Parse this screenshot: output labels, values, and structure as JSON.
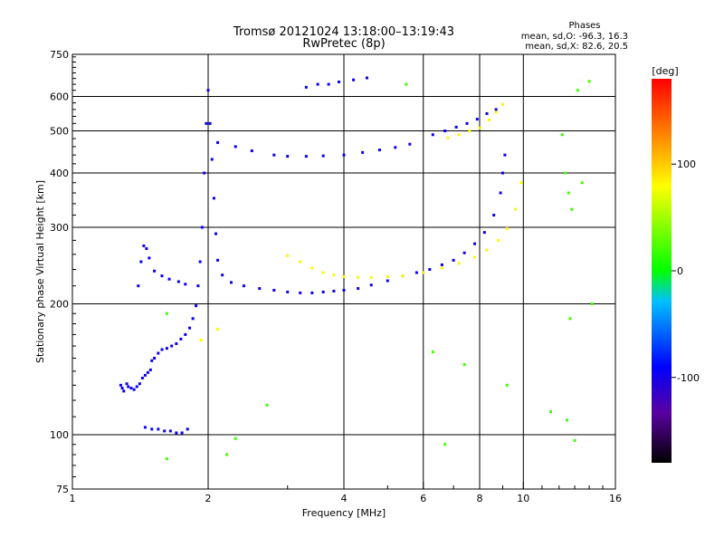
{
  "chart_data": {
    "type": "scatter",
    "title": "Tromsø 20121024 13:18:00–13:19:43",
    "subtitle": "RwPretec (8p)",
    "xlabel": "Frequency [MHz]",
    "ylabel": "Stationary phase Virtual Height [km]",
    "x_scale": "log",
    "y_scale": "log",
    "xlim": [
      1,
      16
    ],
    "ylim": [
      75,
      750
    ],
    "x_ticks": [
      1,
      2,
      4,
      6,
      8,
      10,
      16
    ],
    "x_tick_labels": [
      "1",
      "2",
      "4",
      "6",
      "8",
      "10",
      "16"
    ],
    "y_ticks": [
      75,
      100,
      200,
      300,
      400,
      500,
      600,
      750
    ],
    "y_tick_labels": [
      "75",
      "100",
      "200",
      "300",
      "400",
      "500",
      "600",
      "750"
    ],
    "grid": true,
    "stats": {
      "heading": "Phases",
      "line1": "mean, sd,O: -96.3, 16.3",
      "line2": "mean, sd,X:  82.6, 20.5"
    },
    "colorbar": {
      "label": "[deg]",
      "min": -180,
      "max": 180,
      "ticks": [
        -100,
        0,
        100
      ],
      "tick_labels": [
        "-100",
        "0",
        "100"
      ]
    },
    "series": [
      {
        "points": [
          [
            1.28,
            130
          ],
          [
            1.29,
            128
          ],
          [
            1.3,
            126
          ],
          [
            1.32,
            131
          ],
          [
            1.33,
            129
          ],
          [
            1.35,
            128
          ],
          [
            1.37,
            127
          ],
          [
            1.39,
            129
          ],
          [
            1.41,
            131
          ],
          [
            1.43,
            135
          ],
          [
            1.45,
            137
          ],
          [
            1.47,
            139
          ],
          [
            1.49,
            141
          ],
          [
            1.5,
            148
          ],
          [
            1.52,
            150
          ],
          [
            1.55,
            154
          ],
          [
            1.58,
            157
          ],
          [
            1.62,
            158
          ],
          [
            1.66,
            160
          ],
          [
            1.7,
            162
          ],
          [
            1.74,
            166
          ],
          [
            1.78,
            170
          ],
          [
            1.82,
            176
          ],
          [
            1.85,
            185
          ],
          [
            1.88,
            198
          ],
          [
            1.9,
            220
          ],
          [
            1.92,
            250
          ],
          [
            1.94,
            300
          ],
          [
            1.96,
            400
          ],
          [
            1.98,
            520
          ],
          [
            2.0,
            620
          ],
          [
            2.02,
            520
          ],
          [
            2.04,
            430
          ],
          [
            2.06,
            350
          ],
          [
            2.08,
            290
          ],
          [
            2.1,
            252
          ],
          [
            2.15,
            233
          ],
          [
            2.25,
            224
          ],
          [
            2.4,
            220
          ],
          [
            2.6,
            217
          ],
          [
            2.8,
            215
          ],
          [
            3.0,
            213
          ],
          [
            3.2,
            212
          ],
          [
            3.4,
            212
          ],
          [
            3.6,
            213
          ],
          [
            3.8,
            214
          ],
          [
            4.0,
            215
          ],
          [
            4.3,
            217
          ],
          [
            4.6,
            221
          ],
          [
            5.0,
            226
          ],
          [
            5.4,
            232
          ],
          [
            5.8,
            236
          ],
          [
            6.2,
            240
          ],
          [
            6.6,
            246
          ],
          [
            7.0,
            252
          ],
          [
            7.4,
            262
          ],
          [
            7.8,
            275
          ],
          [
            8.2,
            292
          ],
          [
            8.6,
            320
          ],
          [
            8.9,
            360
          ],
          [
            9.0,
            400
          ],
          [
            9.1,
            440
          ],
          [
            2.1,
            470
          ],
          [
            2.3,
            460
          ],
          [
            2.5,
            450
          ],
          [
            2.8,
            440
          ],
          [
            3.0,
            437
          ],
          [
            3.3,
            437
          ],
          [
            3.6,
            438
          ],
          [
            4.0,
            440
          ],
          [
            4.4,
            446
          ],
          [
            4.8,
            452
          ],
          [
            5.2,
            458
          ],
          [
            5.6,
            466
          ],
          [
            6.3,
            490
          ],
          [
            6.7,
            500
          ],
          [
            7.1,
            510
          ],
          [
            7.5,
            520
          ],
          [
            7.9,
            532
          ],
          [
            8.3,
            548
          ],
          [
            8.7,
            560
          ],
          [
            3.3,
            630
          ],
          [
            3.5,
            640
          ],
          [
            3.7,
            640
          ],
          [
            3.9,
            648
          ],
          [
            4.2,
            655
          ],
          [
            4.5,
            662
          ],
          [
            1.4,
            220
          ],
          [
            1.42,
            250
          ],
          [
            1.44,
            272
          ],
          [
            1.46,
            268
          ],
          [
            1.48,
            255
          ],
          [
            1.52,
            238
          ],
          [
            1.58,
            232
          ],
          [
            1.64,
            228
          ],
          [
            1.72,
            225
          ],
          [
            1.78,
            222
          ],
          [
            1.45,
            104
          ],
          [
            1.5,
            103
          ],
          [
            1.55,
            103
          ],
          [
            1.6,
            102
          ],
          [
            1.65,
            102
          ],
          [
            1.7,
            101
          ],
          [
            1.75,
            101
          ],
          [
            1.8,
            103
          ]
        ],
        "phase": -96
      },
      {
        "points": [
          [
            3.0,
            258
          ],
          [
            3.2,
            250
          ],
          [
            3.4,
            242
          ],
          [
            3.6,
            236
          ],
          [
            3.8,
            233
          ],
          [
            4.0,
            231
          ],
          [
            4.3,
            230
          ],
          [
            4.6,
            230
          ],
          [
            5.0,
            231
          ],
          [
            5.4,
            232
          ],
          [
            6.0,
            236
          ],
          [
            6.6,
            242
          ],
          [
            7.2,
            248
          ],
          [
            7.8,
            256
          ],
          [
            8.3,
            266
          ],
          [
            8.8,
            280
          ],
          [
            9.2,
            298
          ],
          [
            9.6,
            330
          ],
          [
            9.9,
            380
          ],
          [
            6.8,
            482
          ],
          [
            7.2,
            490
          ],
          [
            7.6,
            500
          ],
          [
            8.0,
            508
          ],
          [
            8.4,
            530
          ],
          [
            8.7,
            552
          ],
          [
            9.0,
            575
          ],
          [
            1.93,
            165
          ],
          [
            2.1,
            175
          ]
        ],
        "phase": 83
      },
      {
        "points": [
          [
            1.62,
            190
          ],
          [
            2.2,
            90
          ],
          [
            2.3,
            98
          ],
          [
            2.7,
            117
          ],
          [
            6.3,
            155
          ],
          [
            7.4,
            145
          ],
          [
            9.2,
            130
          ],
          [
            11.5,
            113
          ],
          [
            12.5,
            108
          ],
          [
            13.0,
            97
          ],
          [
            13.5,
            380
          ],
          [
            14.2,
            200
          ],
          [
            12.4,
            400
          ],
          [
            12.6,
            360
          ],
          [
            12.8,
            330
          ],
          [
            13.2,
            620
          ],
          [
            14.0,
            650
          ],
          [
            6.7,
            95
          ],
          [
            12.2,
            490
          ],
          [
            12.7,
            185
          ],
          [
            5.5,
            640
          ],
          [
            1.62,
            88
          ]
        ],
        "phase": 20
      }
    ]
  }
}
